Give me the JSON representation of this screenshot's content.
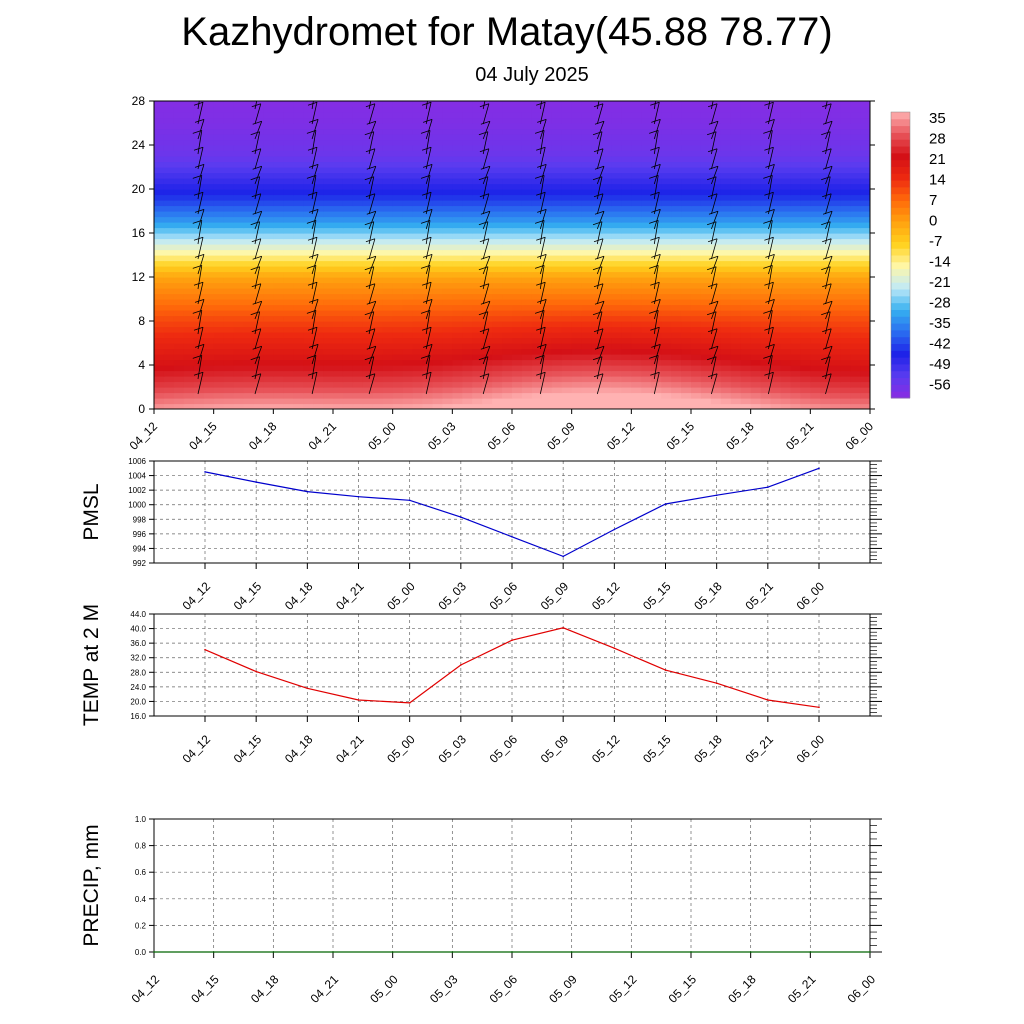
{
  "header": {
    "title": "Kazhydromet for Matay(45.88 78.77)",
    "date": "04 July 2025"
  },
  "chart_data": [
    {
      "type": "heatmap",
      "title": "",
      "x_ticks": [
        "04_12",
        "04_15",
        "04_18",
        "04_21",
        "05_00",
        "05_03",
        "05_06",
        "05_09",
        "05_12",
        "05_15",
        "05_18",
        "05_21",
        "06_00"
      ],
      "y_ticks": [
        0,
        4,
        8,
        12,
        16,
        20,
        24,
        28
      ],
      "ylim": [
        0,
        28
      ],
      "colorbar_labels": [
        "35",
        "28",
        "21",
        "14",
        "7",
        "0",
        "-7",
        "-14",
        "-21",
        "-28",
        "-35",
        "-42",
        "-49",
        "-56"
      ],
      "colorbar_range": [
        -60,
        38
      ],
      "colors": [
        "#8a2be2",
        "#5a3cf0",
        "#1e22e8",
        "#2a6cf0",
        "#35b0f0",
        "#bfe9f8",
        "#fff7a8",
        "#ffd21e",
        "#ffa20f",
        "#ff6a0a",
        "#ee2a10",
        "#d41016",
        "#e8545a",
        "#ffb2b2"
      ],
      "temperature_profile": {
        "levels": [
          0,
          2,
          4,
          6,
          8,
          10,
          12,
          13.5,
          15,
          17,
          19,
          21,
          23,
          26,
          28
        ],
        "values": [
          36,
          28,
          22,
          17,
          12,
          6,
          0,
          -10,
          -20,
          -32,
          -42,
          -49,
          -55,
          -58,
          -59
        ]
      },
      "surface_warm_anomaly": {
        "center_x": "05_09",
        "peak": 8
      }
    },
    {
      "type": "line",
      "ylabel": "PMSL",
      "x": [
        "04_12",
        "04_15",
        "04_18",
        "04_21",
        "05_00",
        "05_03",
        "05_06",
        "05_09",
        "05_12",
        "05_15",
        "05_18",
        "05_21",
        "06_00"
      ],
      "values": [
        1004.5,
        1003.1,
        1001.8,
        1001.1,
        1000.6,
        998.3,
        995.6,
        992.9,
        996.6,
        1000.1,
        1001.3,
        1002.4,
        1005.0
      ],
      "ylim": [
        992,
        1006
      ],
      "y_ticks": [
        "992",
        "994",
        "996",
        "998",
        "1000",
        "1002",
        "1004",
        "1006"
      ],
      "line_color": "#0000cc"
    },
    {
      "type": "line",
      "ylabel": "TEMP at 2 M",
      "x": [
        "04_12",
        "04_15",
        "04_18",
        "04_21",
        "05_00",
        "05_03",
        "05_06",
        "05_09",
        "05_12",
        "05_15",
        "05_18",
        "05_21",
        "06_00"
      ],
      "values": [
        34.2,
        28.2,
        23.6,
        20.4,
        19.6,
        30.0,
        36.8,
        40.2,
        34.6,
        28.6,
        25.0,
        20.4,
        18.4
      ],
      "ylim": [
        16,
        44
      ],
      "y_ticks": [
        "16.0",
        "20.0",
        "24.0",
        "28.0",
        "32.0",
        "36.0",
        "40.0",
        "44.0"
      ],
      "line_color": "#e00000"
    },
    {
      "type": "line",
      "ylabel": "PRECIP, mm",
      "x": [
        "04_12",
        "04_15",
        "04_18",
        "04_21",
        "05_00",
        "05_03",
        "05_06",
        "05_09",
        "05_12",
        "05_15",
        "05_18",
        "05_21",
        "06_00"
      ],
      "values": [
        0,
        0,
        0,
        0,
        0,
        0,
        0,
        0,
        0,
        0,
        0,
        0,
        0
      ],
      "ylim": [
        0,
        1
      ],
      "y_ticks": [
        "0.0",
        "0.2",
        "0.4",
        "0.6",
        "0.8",
        "1.0"
      ],
      "line_color": "#006400"
    }
  ]
}
